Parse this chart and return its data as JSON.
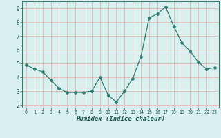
{
  "x": [
    0,
    1,
    2,
    3,
    4,
    5,
    6,
    7,
    8,
    9,
    10,
    11,
    12,
    13,
    14,
    15,
    16,
    17,
    18,
    19,
    20,
    21,
    22,
    23
  ],
  "y": [
    4.9,
    4.6,
    4.4,
    3.8,
    3.2,
    2.9,
    2.9,
    2.9,
    3.0,
    4.0,
    2.7,
    2.2,
    3.0,
    3.9,
    5.5,
    8.3,
    8.6,
    9.1,
    7.7,
    6.5,
    5.9,
    5.1,
    4.6,
    4.7
  ],
  "line_color": "#2d7a6e",
  "marker": "D",
  "marker_size": 2.5,
  "bg_color": "#d8f0ee",
  "grid_color": "#e8aaaa",
  "xlabel": "Humidex (Indice chaleur)",
  "ylabel_ticks": [
    2,
    3,
    4,
    5,
    6,
    7,
    8,
    9
  ],
  "xlim": [
    -0.5,
    23.5
  ],
  "ylim": [
    1.8,
    9.5
  ]
}
